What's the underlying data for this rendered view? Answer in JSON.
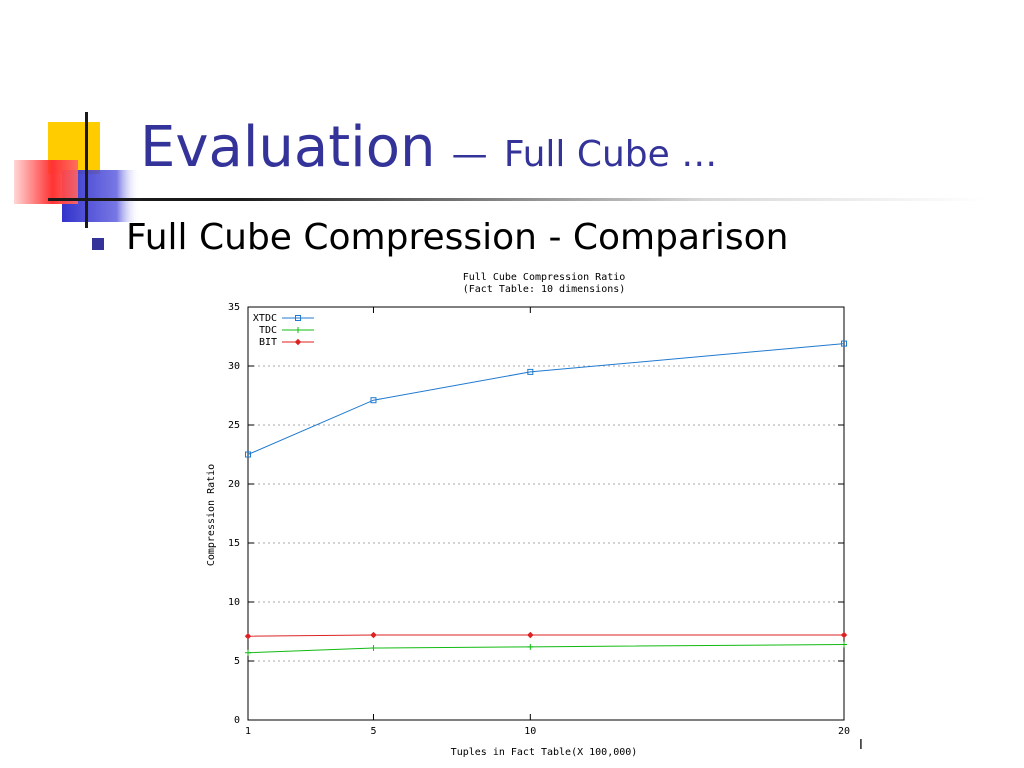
{
  "slide": {
    "title": "Evaluation",
    "title_dash": "—",
    "title_sub": "Full Cube …",
    "bullet": "Full Cube Compression - Comparison",
    "slide_number": "I"
  },
  "colors": {
    "title": "#333399",
    "bullet": "#333399",
    "logo_yellow": "#ffcc00",
    "logo_blue": "#3333cc",
    "logo_red": "#ff3333"
  },
  "chart_data": {
    "type": "line",
    "title": "Full Cube Compression Ratio",
    "subtitle": "(Fact Table: 10 dimensions)",
    "xlabel": "Tuples in Fact Table(X 100,000)",
    "ylabel": "Compression Ratio",
    "x": [
      1,
      5,
      10,
      20
    ],
    "xlim": [
      1,
      20
    ],
    "ylim": [
      0,
      35
    ],
    "xticks": [
      1,
      5,
      10,
      20
    ],
    "yticks": [
      0,
      5,
      10,
      15,
      20,
      25,
      30,
      35
    ],
    "grid": true,
    "legend_position": "top-left",
    "series": [
      {
        "name": "XTDC",
        "values": [
          22.5,
          27.1,
          29.5,
          31.9
        ],
        "color": "#1f7ad0",
        "marker": "square"
      },
      {
        "name": "TDC",
        "values": [
          5.7,
          6.1,
          6.2,
          6.4
        ],
        "color": "#11bb11",
        "marker": "plus"
      },
      {
        "name": "BIT",
        "values": [
          7.1,
          7.2,
          7.2,
          7.2
        ],
        "color": "#dd2222",
        "marker": "diamond"
      }
    ]
  }
}
